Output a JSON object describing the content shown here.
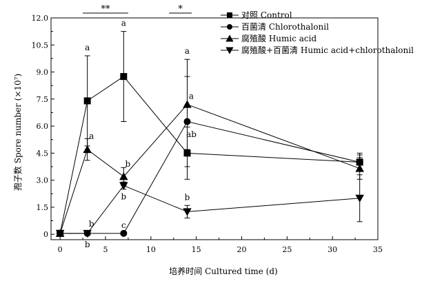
{
  "chart_data": {
    "type": "line",
    "xlabel": "培养时间 Cultured time (d)",
    "ylabel": "孢子数 Spore number (×10⁷)",
    "xlim": [
      -1,
      35
    ],
    "ylim": [
      -0.3,
      12.0
    ],
    "xticks": [
      0,
      5,
      10,
      15,
      20,
      25,
      30,
      35
    ],
    "yticks": [
      0,
      1.5,
      3.0,
      4.5,
      6.0,
      7.5,
      9.0,
      10.5,
      12.0
    ],
    "ytick_labels": [
      "0",
      "1.5",
      "3.0",
      "4.5",
      "6.0",
      "7.5",
      "9.0",
      "10.5",
      "12.0"
    ],
    "legend_position": "top-right",
    "series": [
      {
        "name": "对照 Control",
        "marker": "square",
        "x": [
          0,
          3,
          7,
          14,
          33
        ],
        "y": [
          0.05,
          7.4,
          8.75,
          4.5,
          4.0
        ],
        "err": [
          0.05,
          2.5,
          2.5,
          1.45,
          0.5
        ],
        "labels": [
          {
            "x": 3,
            "y": 7.4,
            "text": "a",
            "pos": "above"
          },
          {
            "x": 7,
            "y": 8.75,
            "text": "a",
            "pos": "above"
          },
          {
            "x": 14,
            "y": 4.5,
            "text": "ab",
            "pos": "above-right"
          }
        ]
      },
      {
        "name": "百菌清 Chlorothalonil",
        "marker": "circle",
        "x": [
          0,
          3,
          7,
          14,
          33
        ],
        "y": [
          0.05,
          0.05,
          0.05,
          6.25,
          4.0
        ],
        "err": [
          0,
          0,
          0,
          2.5,
          0.4
        ],
        "labels": [
          {
            "x": 3,
            "y": 0.05,
            "text": "b",
            "pos": "above-right"
          },
          {
            "x": 7,
            "y": 0.05,
            "text": "c",
            "pos": "above"
          },
          {
            "x": 14,
            "y": 6.25,
            "text": "a",
            "pos": "above-right"
          }
        ]
      },
      {
        "name": "腐殖酸 Humic acid",
        "marker": "triangle-up",
        "x": [
          0,
          3,
          7,
          14,
          33
        ],
        "y": [
          0.05,
          4.7,
          3.2,
          7.2,
          3.65
        ],
        "err": [
          0,
          0.6,
          0.5,
          2.5,
          0.6
        ],
        "labels": [
          {
            "x": 3,
            "y": 4.7,
            "text": "a",
            "pos": "above-right"
          },
          {
            "x": 7,
            "y": 3.2,
            "text": "b",
            "pos": "above-right"
          },
          {
            "x": 14,
            "y": 7.2,
            "text": "a",
            "pos": "above-high"
          }
        ]
      },
      {
        "name": "腐殖酸+百菌清 Humic acid+chlorothalonil",
        "marker": "triangle-down",
        "x": [
          0,
          3,
          7,
          14,
          33
        ],
        "y": [
          0.05,
          0.05,
          2.7,
          1.25,
          2.0
        ],
        "err": [
          0,
          0,
          0.2,
          0.35,
          1.3
        ],
        "labels": [
          {
            "x": 3,
            "y": 0.05,
            "text": "b",
            "pos": "below"
          },
          {
            "x": 7,
            "y": 2.7,
            "text": "b",
            "pos": "below"
          },
          {
            "x": 14,
            "y": 1.25,
            "text": "b",
            "pos": "above"
          }
        ]
      }
    ],
    "significance": [
      {
        "x0": 2.5,
        "x1": 7.5,
        "text": "**"
      },
      {
        "x0": 12.0,
        "x1": 14.5,
        "text": "*"
      }
    ]
  }
}
